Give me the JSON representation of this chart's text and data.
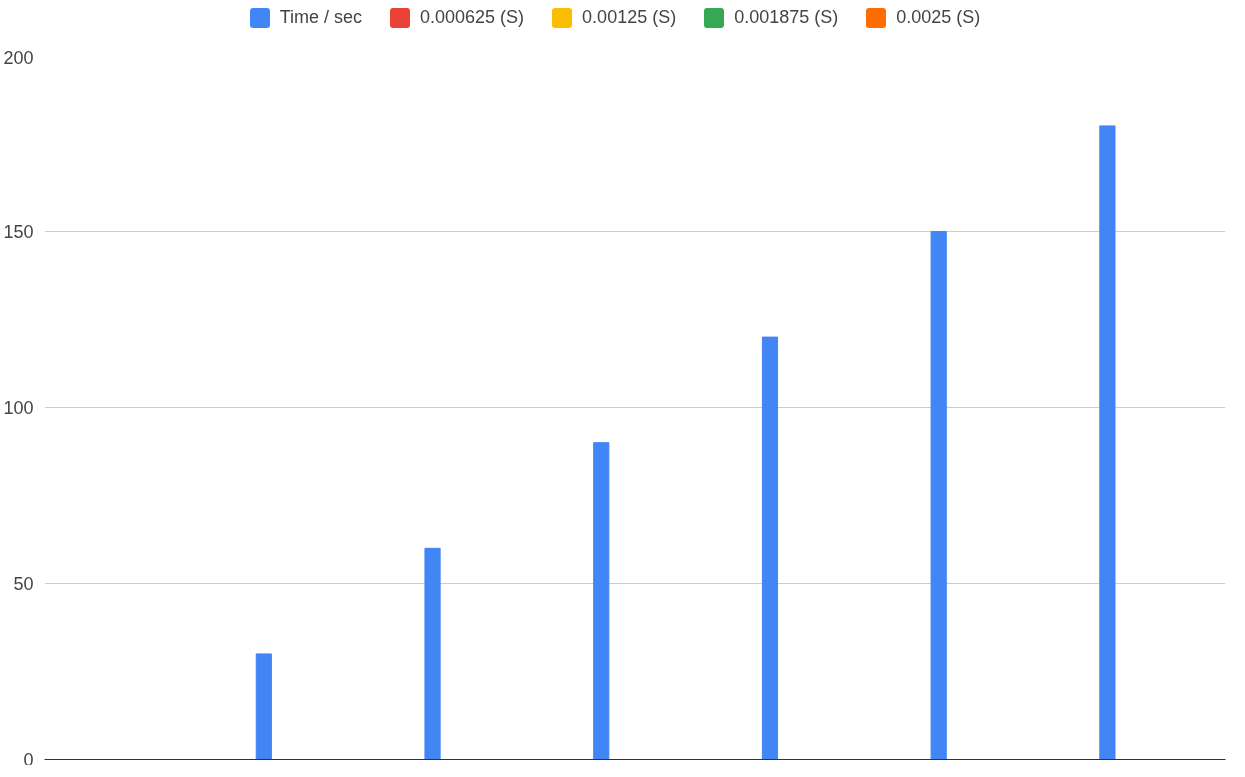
{
  "chart_data": {
    "type": "bar",
    "categories": [
      null,
      null,
      null,
      null,
      null,
      null,
      null
    ],
    "series": [
      {
        "name": "Time / sec",
        "color": "#4285f4",
        "values": [
          null,
          30,
          60,
          90,
          120,
          150,
          180
        ]
      },
      {
        "name": "0.000625 (S)",
        "color": "#ea4335",
        "values": [
          null,
          null,
          null,
          null,
          null,
          null,
          null
        ]
      },
      {
        "name": "0.00125 (S)",
        "color": "#fbbc04",
        "values": [
          null,
          null,
          null,
          null,
          null,
          null,
          null
        ]
      },
      {
        "name": "0.001875 (S)",
        "color": "#34a853",
        "values": [
          null,
          null,
          null,
          null,
          null,
          null,
          null
        ]
      },
      {
        "name": "0.0025 (S)",
        "color": "#ff6d01",
        "values": [
          null,
          null,
          null,
          null,
          null,
          null,
          null
        ]
      }
    ],
    "ylim": [
      0,
      200
    ],
    "yticks": [
      0,
      50,
      100,
      150,
      200
    ],
    "grid": "y",
    "legend": "top",
    "tick_labels": "y"
  }
}
